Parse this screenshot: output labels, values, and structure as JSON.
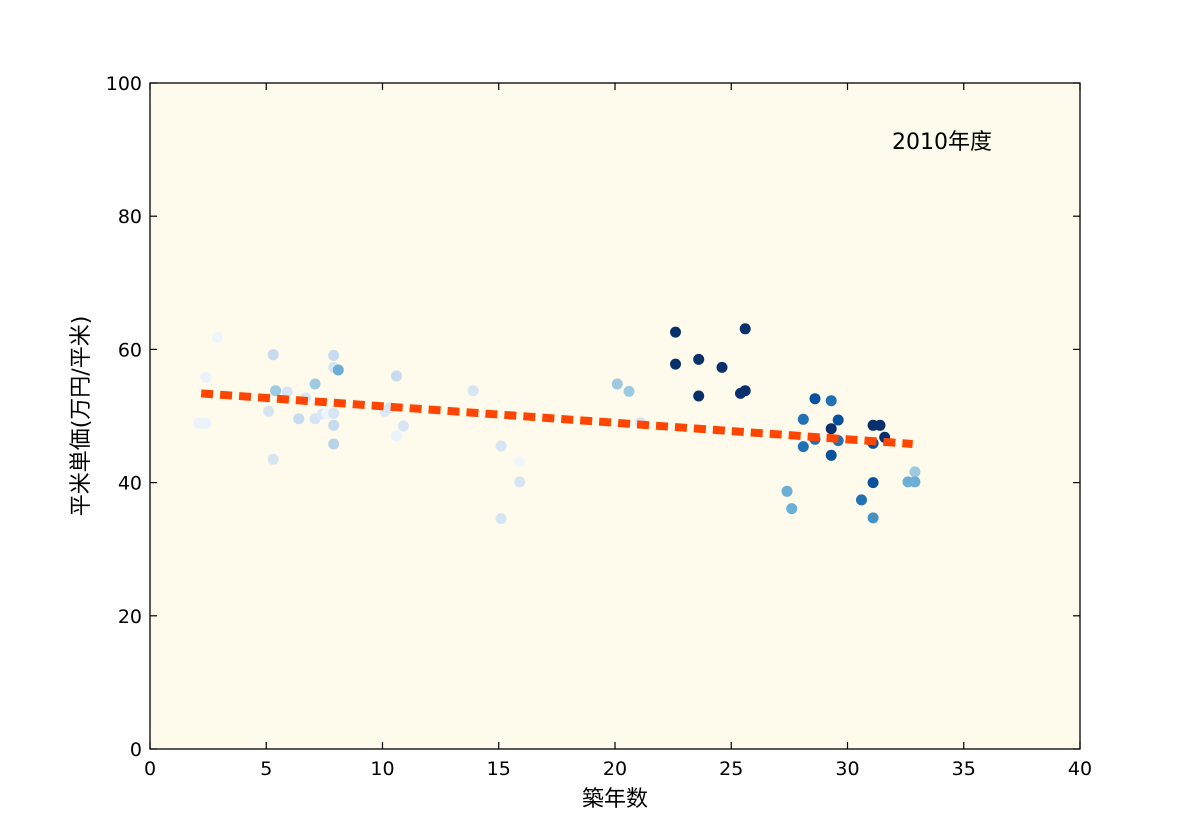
{
  "chart_data": {
    "type": "scatter",
    "xlabel": "築年数",
    "ylabel": "平米単価(万円/平米)",
    "annotation": "2010年度",
    "xlim": [
      0,
      40
    ],
    "ylim": [
      0,
      100
    ],
    "x_ticks": [
      "0",
      "5",
      "10",
      "15",
      "20",
      "25",
      "30",
      "35",
      "40"
    ],
    "y_ticks": [
      "0",
      "20",
      "40",
      "60",
      "80",
      "100"
    ],
    "grid": false,
    "plot_background": "#fefaec",
    "trend_line": {
      "style": "dashed",
      "color": "#ff4500",
      "x": [
        2.2,
        32.8
      ],
      "y": [
        53.4,
        45.8
      ]
    },
    "points": [
      {
        "x": 2.1,
        "y": 48.9,
        "color": "#eaf2fb"
      },
      {
        "x": 2.4,
        "y": 48.9,
        "color": "#eaf2fb"
      },
      {
        "x": 2.4,
        "y": 55.8,
        "color": "#eaf2fb"
      },
      {
        "x": 2.9,
        "y": 61.8,
        "color": "#eef5fc"
      },
      {
        "x": 5.1,
        "y": 50.7,
        "color": "#d5e5f4"
      },
      {
        "x": 5.3,
        "y": 43.5,
        "color": "#d5e5f4"
      },
      {
        "x": 5.3,
        "y": 59.2,
        "color": "#c6dbef"
      },
      {
        "x": 5.4,
        "y": 53.8,
        "color": "#9ecae1"
      },
      {
        "x": 5.9,
        "y": 53.6,
        "color": "#d5e5f4"
      },
      {
        "x": 6.4,
        "y": 49.6,
        "color": "#c6dbef"
      },
      {
        "x": 6.7,
        "y": 52.7,
        "color": "#d5e5f4"
      },
      {
        "x": 7.1,
        "y": 54.8,
        "color": "#9ecae1"
      },
      {
        "x": 7.1,
        "y": 49.6,
        "color": "#d5e5f4"
      },
      {
        "x": 7.4,
        "y": 50.3,
        "color": "#dbe9f6"
      },
      {
        "x": 7.6,
        "y": 50.4,
        "color": "#eef5fc"
      },
      {
        "x": 7.9,
        "y": 59.1,
        "color": "#c6dbef"
      },
      {
        "x": 7.9,
        "y": 57.3,
        "color": "#d5e5f4"
      },
      {
        "x": 7.9,
        "y": 50.4,
        "color": "#d5e5f4"
      },
      {
        "x": 7.9,
        "y": 48.6,
        "color": "#c6dbef"
      },
      {
        "x": 7.9,
        "y": 45.8,
        "color": "#b8d3ea"
      },
      {
        "x": 8.1,
        "y": 56.9,
        "color": "#6baed6"
      },
      {
        "x": 10.1,
        "y": 50.7,
        "color": "#dbe9f6"
      },
      {
        "x": 10.3,
        "y": 51.2,
        "color": "#d5e5f4"
      },
      {
        "x": 10.6,
        "y": 56.0,
        "color": "#c6dbef"
      },
      {
        "x": 10.6,
        "y": 47.0,
        "color": "#eaf2fb"
      },
      {
        "x": 10.9,
        "y": 48.5,
        "color": "#d5e5f4"
      },
      {
        "x": 13.9,
        "y": 53.8,
        "color": "#d5e5f4"
      },
      {
        "x": 15.1,
        "y": 45.5,
        "color": "#d5e5f4"
      },
      {
        "x": 15.1,
        "y": 34.6,
        "color": "#d5e5f4"
      },
      {
        "x": 15.9,
        "y": 43.1,
        "color": "#eef5fc"
      },
      {
        "x": 15.9,
        "y": 40.1,
        "color": "#d5e5f4"
      },
      {
        "x": 20.1,
        "y": 54.8,
        "color": "#9ecae1"
      },
      {
        "x": 20.6,
        "y": 53.7,
        "color": "#9ecae1"
      },
      {
        "x": 21.1,
        "y": 49.0,
        "color": "#d5e5f4"
      },
      {
        "x": 22.6,
        "y": 62.6,
        "color": "#08306b"
      },
      {
        "x": 22.6,
        "y": 57.8,
        "color": "#08306b"
      },
      {
        "x": 23.6,
        "y": 58.5,
        "color": "#08306b"
      },
      {
        "x": 23.6,
        "y": 53.0,
        "color": "#08306b"
      },
      {
        "x": 24.6,
        "y": 57.3,
        "color": "#08306b"
      },
      {
        "x": 25.4,
        "y": 53.4,
        "color": "#08306b"
      },
      {
        "x": 25.6,
        "y": 63.1,
        "color": "#08306b"
      },
      {
        "x": 25.6,
        "y": 53.8,
        "color": "#08306b"
      },
      {
        "x": 27.4,
        "y": 38.7,
        "color": "#6baed6"
      },
      {
        "x": 27.6,
        "y": 36.1,
        "color": "#6baed6"
      },
      {
        "x": 28.1,
        "y": 49.5,
        "color": "#2171b5"
      },
      {
        "x": 28.1,
        "y": 45.4,
        "color": "#2171b5"
      },
      {
        "x": 28.6,
        "y": 52.6,
        "color": "#08519c"
      },
      {
        "x": 28.6,
        "y": 46.5,
        "color": "#2171b5"
      },
      {
        "x": 29.3,
        "y": 52.3,
        "color": "#2171b5"
      },
      {
        "x": 29.3,
        "y": 48.1,
        "color": "#08306b"
      },
      {
        "x": 29.3,
        "y": 44.1,
        "color": "#08519c"
      },
      {
        "x": 29.6,
        "y": 49.4,
        "color": "#08519c"
      },
      {
        "x": 29.6,
        "y": 46.3,
        "color": "#2171b5"
      },
      {
        "x": 30.6,
        "y": 37.4,
        "color": "#2171b5"
      },
      {
        "x": 31.1,
        "y": 48.6,
        "color": "#08306b"
      },
      {
        "x": 31.1,
        "y": 45.9,
        "color": "#08519c"
      },
      {
        "x": 31.1,
        "y": 40.0,
        "color": "#08519c"
      },
      {
        "x": 31.1,
        "y": 34.7,
        "color": "#4292c6"
      },
      {
        "x": 31.4,
        "y": 48.6,
        "color": "#08306b"
      },
      {
        "x": 31.6,
        "y": 46.8,
        "color": "#08306b"
      },
      {
        "x": 32.6,
        "y": 40.1,
        "color": "#6baed6"
      },
      {
        "x": 32.9,
        "y": 41.6,
        "color": "#9ecae1"
      },
      {
        "x": 32.9,
        "y": 40.1,
        "color": "#6baed6"
      }
    ]
  }
}
